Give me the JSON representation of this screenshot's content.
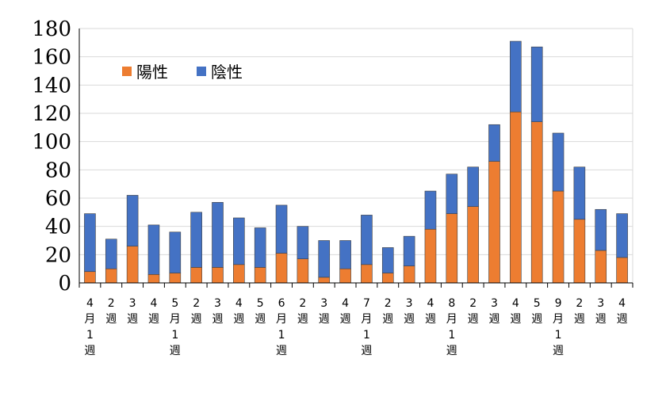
{
  "chart_data": {
    "type": "bar",
    "stacked": true,
    "categories": [
      [
        "4",
        "月",
        "1",
        "週"
      ],
      [
        "2",
        "週"
      ],
      [
        "3",
        "週"
      ],
      [
        "4",
        "週"
      ],
      [
        "5",
        "月",
        "1",
        "週"
      ],
      [
        "2",
        "週"
      ],
      [
        "3",
        "週"
      ],
      [
        "4",
        "週"
      ],
      [
        "5",
        "週"
      ],
      [
        "6",
        "月",
        "1",
        "週"
      ],
      [
        "2",
        "週"
      ],
      [
        "3",
        "週"
      ],
      [
        "4",
        "週"
      ],
      [
        "7",
        "月",
        "1",
        "週"
      ],
      [
        "2",
        "週"
      ],
      [
        "3",
        "週"
      ],
      [
        "4",
        "週"
      ],
      [
        "8",
        "月",
        "1",
        "週"
      ],
      [
        "2",
        "週"
      ],
      [
        "3",
        "週"
      ],
      [
        "4",
        "週"
      ],
      [
        "5",
        "週"
      ],
      [
        "9",
        "月",
        "1",
        "週"
      ],
      [
        "2",
        "週"
      ],
      [
        "3",
        "週"
      ],
      [
        "4",
        "週"
      ]
    ],
    "series": [
      {
        "name": "陽性",
        "color": "#ED7D31",
        "values": [
          8,
          10,
          26,
          6,
          7,
          11,
          11,
          13,
          11,
          21,
          17,
          4,
          10,
          13,
          7,
          12,
          38,
          49,
          54,
          86,
          121,
          114,
          65,
          45,
          23,
          18
        ]
      },
      {
        "name": "陰性",
        "color": "#4472C4",
        "values": [
          41,
          21,
          36,
          35,
          29,
          39,
          46,
          33,
          28,
          34,
          23,
          26,
          20,
          35,
          18,
          21,
          27,
          28,
          28,
          26,
          50,
          53,
          41,
          37,
          29,
          31
        ]
      }
    ],
    "ylim": [
      0,
      180
    ],
    "yticks": [
      "0",
      "20",
      "40",
      "60",
      "80",
      "100",
      "120",
      "140",
      "160",
      "180"
    ],
    "grid": true,
    "legend_position": "top-left"
  }
}
